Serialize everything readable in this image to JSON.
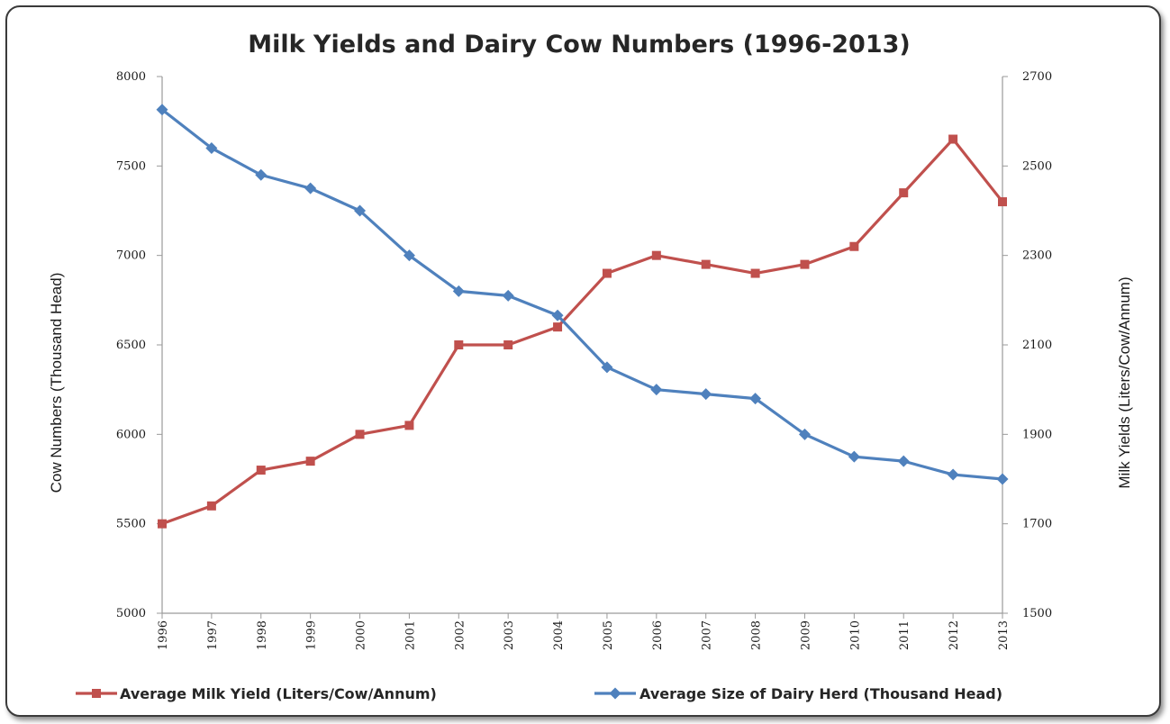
{
  "chart_data": {
    "type": "line",
    "title": "Milk Yields and Dairy Cow Numbers (1996-2013)",
    "categories": [
      "1996",
      "1997",
      "1998",
      "1999",
      "2000",
      "2001",
      "2002",
      "2003",
      "2004",
      "2005",
      "2006",
      "2007",
      "2008",
      "2009",
      "2010",
      "2011",
      "2012",
      "2013"
    ],
    "y_left": {
      "label": "Cow Numbers (Thousand Head)",
      "ylim": [
        5000,
        8000
      ],
      "ticks": [
        "5000",
        "5500",
        "6000",
        "6500",
        "7000",
        "7500",
        "8000"
      ]
    },
    "y_right": {
      "label": "Milk Yields (Liters/Cow/Annum)",
      "ylim": [
        1500,
        2700
      ],
      "ticks": [
        "1500",
        "1700",
        "1900",
        "2100",
        "2300",
        "2500",
        "2700"
      ]
    },
    "series": [
      {
        "name": "Average Milk Yield (Liters/Cow/Annum)",
        "axis": "right",
        "color": "#c0504d",
        "marker": "square",
        "values": [
          1700,
          1740,
          1820,
          1840,
          1900,
          1920,
          2100,
          2100,
          2140,
          2260,
          2300,
          2280,
          2260,
          2280,
          2320,
          2440,
          2560,
          2420
        ]
      },
      {
        "name": "Average Size of Dairy Herd (Thousand Head)",
        "axis": "left",
        "color": "#4f81bd",
        "marker": "diamond",
        "values": [
          7815,
          7600,
          7450,
          7375,
          7250,
          7000,
          6800,
          6775,
          6665,
          6375,
          6250,
          6225,
          6200,
          6000,
          5875,
          5850,
          5775,
          5750
        ]
      }
    ],
    "grid": false,
    "legend": "bottom"
  }
}
